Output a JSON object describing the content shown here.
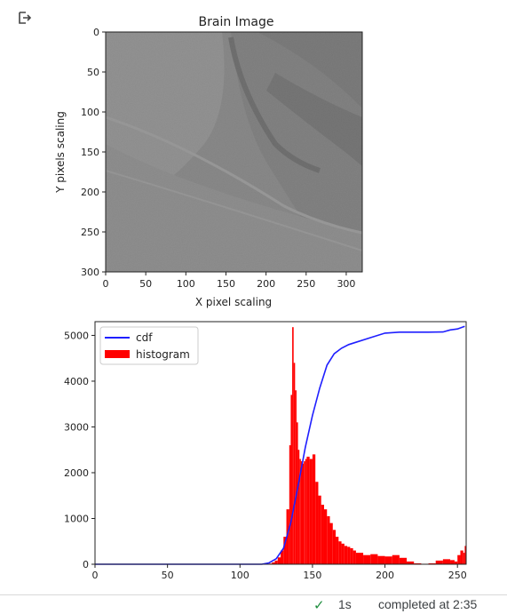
{
  "output_icon": "output-redirect-icon",
  "colors": {
    "cdf": "#1f1fff",
    "histogram": "#ff0000",
    "status_check": "#1e8e3e"
  },
  "chart_data": [
    {
      "type": "heatmap",
      "title": "Brain Image",
      "xlabel": "X pixel scaling",
      "ylabel": "Y pixels scaling",
      "xticks": [
        "0",
        "50",
        "100",
        "150",
        "200",
        "250",
        "300"
      ],
      "yticks": [
        "0",
        "50",
        "100",
        "150",
        "200",
        "250",
        "300"
      ],
      "xlim": [
        0,
        320
      ],
      "ylim": [
        300,
        0
      ],
      "colormap": "gray"
    },
    {
      "type": "bar",
      "title": "",
      "xlabel": "",
      "ylabel": "",
      "xlim": [
        0,
        256
      ],
      "ylim": [
        0,
        5300
      ],
      "xticks": [
        "0",
        "50",
        "100",
        "150",
        "200",
        "250"
      ],
      "yticks": [
        "0",
        "1000",
        "2000",
        "3000",
        "4000",
        "5000"
      ],
      "legend_position": "top-left",
      "series": [
        {
          "name": "cdf",
          "type": "line",
          "x": [
            0,
            115,
            120,
            125,
            130,
            135,
            140,
            145,
            150,
            155,
            160,
            165,
            170,
            175,
            180,
            190,
            200,
            210,
            220,
            230,
            240,
            245,
            250,
            255
          ],
          "y": [
            0,
            0,
            30,
            120,
            350,
            900,
            1700,
            2550,
            3250,
            3850,
            4350,
            4600,
            4720,
            4800,
            4850,
            4950,
            5050,
            5070,
            5070,
            5070,
            5075,
            5120,
            5140,
            5200
          ]
        },
        {
          "name": "histogram",
          "type": "bar",
          "x": [
            118,
            120,
            122,
            124,
            126,
            128,
            130,
            132,
            134,
            135,
            136,
            137,
            138,
            139,
            140,
            141,
            142,
            143,
            144,
            145,
            146,
            148,
            150,
            152,
            154,
            156,
            158,
            160,
            162,
            164,
            166,
            168,
            170,
            172,
            174,
            176,
            178,
            180,
            185,
            190,
            195,
            200,
            205,
            210,
            215,
            220,
            225,
            230,
            235,
            240,
            245,
            248,
            250,
            252,
            254,
            255
          ],
          "y": [
            5,
            15,
            40,
            80,
            150,
            300,
            600,
            1200,
            2600,
            3700,
            5180,
            4400,
            3800,
            3100,
            2500,
            2300,
            2250,
            2200,
            2250,
            2300,
            2350,
            2300,
            2400,
            1800,
            1500,
            1300,
            1200,
            1050,
            900,
            750,
            600,
            500,
            450,
            400,
            380,
            350,
            300,
            250,
            200,
            220,
            180,
            170,
            200,
            140,
            60,
            20,
            10,
            20,
            80,
            110,
            90,
            60,
            200,
            300,
            250,
            400
          ]
        }
      ]
    }
  ],
  "status": {
    "check": "✓",
    "duration": "1s",
    "completed": "completed at 2:35"
  }
}
